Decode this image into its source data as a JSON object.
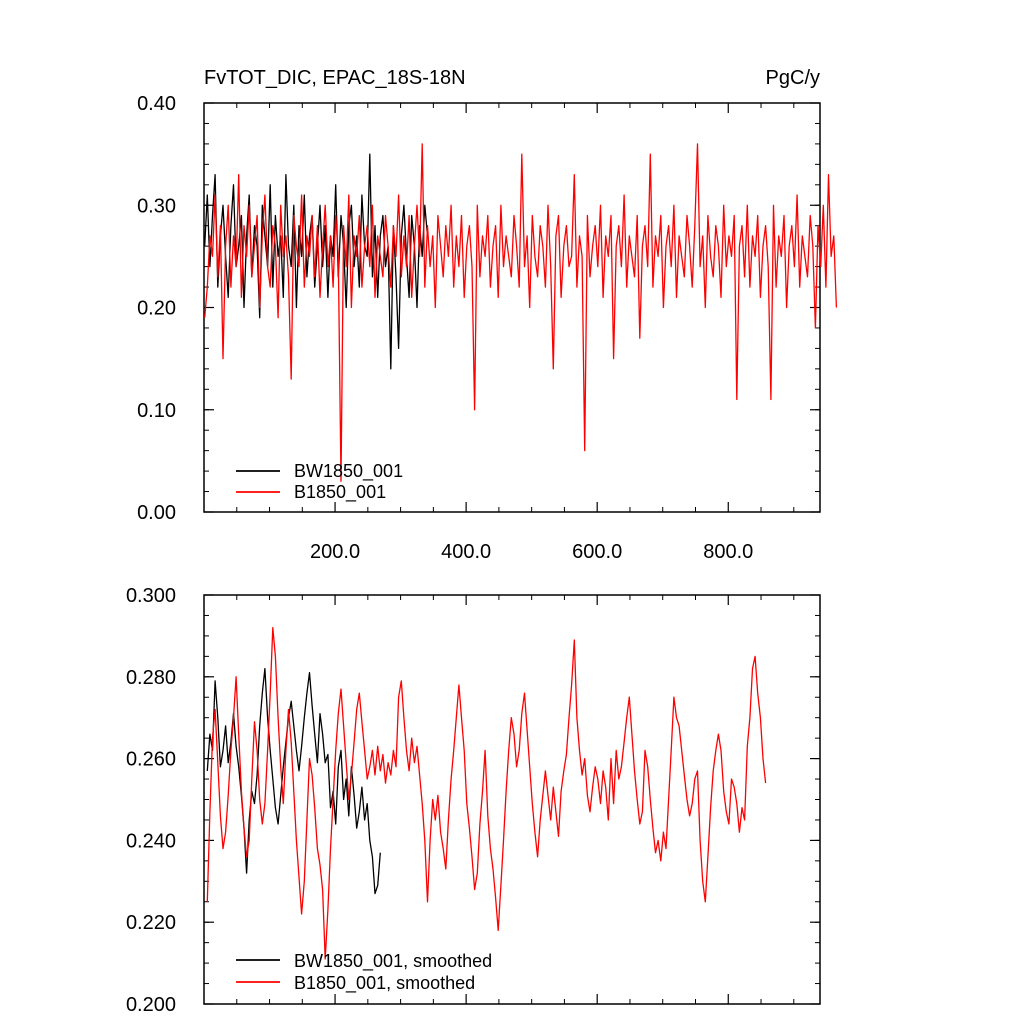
{
  "chart_data": [
    {
      "type": "line",
      "title_left": "FvTOT_DIC, EPAC_18S-18N",
      "title_right": "PgC/y",
      "xlim": [
        0,
        940
      ],
      "ylim": [
        0.0,
        0.4
      ],
      "x_ticks": [
        200,
        400,
        600,
        800
      ],
      "x_tick_labels": [
        "200.0",
        "400.0",
        "600.0",
        "800.0"
      ],
      "y_ticks": [
        0.0,
        0.1,
        0.2,
        0.3,
        0.4
      ],
      "y_tick_labels": [
        "0.00",
        "0.10",
        "0.20",
        "0.30",
        "0.40"
      ],
      "legend_position": "bottom-left",
      "series": [
        {
          "name": "BW1850_001",
          "color": "#000000",
          "x_start": 1,
          "x_step": 4,
          "values": [
            0.26,
            0.31,
            0.24,
            0.29,
            0.33,
            0.22,
            0.27,
            0.3,
            0.25,
            0.21,
            0.28,
            0.32,
            0.24,
            0.26,
            0.29,
            0.2,
            0.27,
            0.31,
            0.23,
            0.28,
            0.26,
            0.19,
            0.3,
            0.27,
            0.24,
            0.32,
            0.22,
            0.29,
            0.25,
            0.27,
            0.21,
            0.33,
            0.26,
            0.24,
            0.3,
            0.2,
            0.28,
            0.25,
            0.31,
            0.23,
            0.27,
            0.29,
            0.22,
            0.26,
            0.3,
            0.24,
            0.28,
            0.21,
            0.27,
            0.25,
            0.32,
            0.23,
            0.29,
            0.26,
            0.2,
            0.28,
            0.3,
            0.24,
            0.27,
            0.22,
            0.31,
            0.26,
            0.25,
            0.35,
            0.23,
            0.28,
            0.21,
            0.27,
            0.29,
            0.24,
            0.26,
            0.14,
            0.28,
            0.23,
            0.16,
            0.27,
            0.3,
            0.25,
            0.21,
            0.29,
            0.26,
            0.2,
            0.28,
            0.25,
            0.3,
            0.27
          ]
        },
        {
          "name": "B1850_001",
          "color": "#ff0000",
          "x_start": 1,
          "x_step": 4,
          "values": [
            0.19,
            0.22,
            0.27,
            0.25,
            0.31,
            0.23,
            0.28,
            0.15,
            0.26,
            0.3,
            0.22,
            0.27,
            0.24,
            0.33,
            0.21,
            0.28,
            0.25,
            0.3,
            0.23,
            0.26,
            0.29,
            0.2,
            0.27,
            0.31,
            0.24,
            0.22,
            0.28,
            0.26,
            0.19,
            0.3,
            0.25,
            0.27,
            0.23,
            0.13,
            0.29,
            0.26,
            0.24,
            0.31,
            0.22,
            0.27,
            0.25,
            0.29,
            0.23,
            0.28,
            0.21,
            0.26,
            0.3,
            0.24,
            0.27,
            0.22,
            0.29,
            0.25,
            0.03,
            0.28,
            0.24,
            0.31,
            0.2,
            0.27,
            0.25,
            0.29,
            0.22,
            0.26,
            0.28,
            0.24,
            0.3,
            0.21,
            0.27,
            0.25,
            0.23,
            0.29,
            0.26,
            0.22,
            0.28,
            0.25,
            0.31,
            0.23,
            0.27,
            0.24,
            0.29,
            0.21,
            0.26,
            0.3,
            0.25,
            0.36,
            0.22,
            0.28,
            0.24,
            0.27,
            0.2,
            0.29,
            0.26,
            0.23,
            0.28,
            0.25,
            0.3,
            0.22,
            0.27,
            0.24,
            0.29,
            0.21,
            0.26,
            0.28,
            0.24,
            0.1,
            0.3,
            0.23,
            0.27,
            0.25,
            0.29,
            0.22,
            0.26,
            0.28,
            0.21,
            0.3,
            0.24,
            0.27,
            0.25,
            0.23,
            0.29,
            0.26,
            0.22,
            0.35,
            0.24,
            0.27,
            0.2,
            0.29,
            0.25,
            0.23,
            0.28,
            0.26,
            0.22,
            0.3,
            0.24,
            0.14,
            0.27,
            0.29,
            0.21,
            0.26,
            0.28,
            0.24,
            0.25,
            0.33,
            0.22,
            0.27,
            0.25,
            0.06,
            0.29,
            0.23,
            0.26,
            0.28,
            0.24,
            0.3,
            0.21,
            0.27,
            0.25,
            0.29,
            0.15,
            0.26,
            0.28,
            0.24,
            0.31,
            0.22,
            0.27,
            0.25,
            0.23,
            0.29,
            0.17,
            0.26,
            0.28,
            0.24,
            0.35,
            0.22,
            0.27,
            0.25,
            0.29,
            0.2,
            0.26,
            0.28,
            0.24,
            0.3,
            0.21,
            0.27,
            0.25,
            0.23,
            0.29,
            0.26,
            0.22,
            0.28,
            0.36,
            0.24,
            0.27,
            0.2,
            0.29,
            0.25,
            0.23,
            0.28,
            0.26,
            0.21,
            0.3,
            0.24,
            0.27,
            0.25,
            0.29,
            0.11,
            0.26,
            0.28,
            0.23,
            0.3,
            0.22,
            0.27,
            0.25,
            0.29,
            0.21,
            0.26,
            0.28,
            0.24,
            0.11,
            0.3,
            0.22,
            0.27,
            0.25,
            0.29,
            0.2,
            0.26,
            0.28,
            0.24,
            0.31,
            0.22,
            0.27,
            0.25,
            0.23,
            0.29,
            0.26,
            0.18,
            0.28,
            0.24,
            0.3,
            0.22,
            0.33,
            0.25,
            0.27,
            0.2
          ]
        }
      ]
    },
    {
      "type": "line",
      "xlim": [
        0,
        940
      ],
      "ylim": [
        0.2,
        0.3
      ],
      "x_ticks": [
        200,
        400,
        600,
        800
      ],
      "y_ticks": [
        0.2,
        0.22,
        0.24,
        0.26,
        0.28,
        0.3
      ],
      "y_tick_labels": [
        "0.200",
        "0.220",
        "0.240",
        "0.260",
        "0.280",
        "0.300"
      ],
      "legend_position": "bottom-left",
      "series": [
        {
          "name": "BW1850_001, smoothed",
          "color": "#000000",
          "x_start": 5,
          "x_step": 4,
          "values": [
            0.257,
            0.266,
            0.262,
            0.279,
            0.27,
            0.258,
            0.262,
            0.268,
            0.259,
            0.264,
            0.271,
            0.263,
            0.258,
            0.251,
            0.243,
            0.232,
            0.245,
            0.252,
            0.249,
            0.256,
            0.268,
            0.276,
            0.282,
            0.27,
            0.262,
            0.255,
            0.248,
            0.244,
            0.251,
            0.258,
            0.264,
            0.27,
            0.274,
            0.268,
            0.262,
            0.257,
            0.263,
            0.27,
            0.276,
            0.281,
            0.273,
            0.266,
            0.259,
            0.271,
            0.266,
            0.259,
            0.261,
            0.248,
            0.252,
            0.244,
            0.258,
            0.262,
            0.25,
            0.255,
            0.246,
            0.258,
            0.251,
            0.243,
            0.247,
            0.253,
            0.245,
            0.249,
            0.24,
            0.236,
            0.227,
            0.229,
            0.237
          ]
        },
        {
          "name": "B1850_001, smoothed",
          "color": "#ff0000",
          "x_start": 5,
          "x_step": 4,
          "values": [
            0.225,
            0.247,
            0.265,
            0.272,
            0.259,
            0.246,
            0.238,
            0.242,
            0.251,
            0.262,
            0.27,
            0.28,
            0.266,
            0.252,
            0.243,
            0.236,
            0.24,
            0.255,
            0.269,
            0.262,
            0.25,
            0.244,
            0.249,
            0.262,
            0.276,
            0.292,
            0.285,
            0.27,
            0.258,
            0.249,
            0.262,
            0.272,
            0.264,
            0.252,
            0.24,
            0.231,
            0.222,
            0.23,
            0.245,
            0.26,
            0.256,
            0.248,
            0.238,
            0.234,
            0.228,
            0.211,
            0.223,
            0.238,
            0.25,
            0.262,
            0.271,
            0.277,
            0.268,
            0.259,
            0.25,
            0.256,
            0.264,
            0.272,
            0.276,
            0.269,
            0.262,
            0.255,
            0.258,
            0.262,
            0.256,
            0.263,
            0.257,
            0.261,
            0.254,
            0.259,
            0.256,
            0.262,
            0.258,
            0.275,
            0.279,
            0.27,
            0.262,
            0.257,
            0.265,
            0.259,
            0.263,
            0.256,
            0.249,
            0.24,
            0.225,
            0.24,
            0.25,
            0.245,
            0.251,
            0.242,
            0.238,
            0.233,
            0.245,
            0.255,
            0.262,
            0.27,
            0.278,
            0.27,
            0.262,
            0.249,
            0.243,
            0.236,
            0.228,
            0.232,
            0.244,
            0.252,
            0.262,
            0.246,
            0.238,
            0.233,
            0.226,
            0.218,
            0.229,
            0.24,
            0.252,
            0.262,
            0.27,
            0.266,
            0.258,
            0.262,
            0.271,
            0.276,
            0.267,
            0.258,
            0.249,
            0.242,
            0.236,
            0.245,
            0.251,
            0.257,
            0.251,
            0.245,
            0.253,
            0.247,
            0.241,
            0.252,
            0.257,
            0.261,
            0.27,
            0.278,
            0.289,
            0.27,
            0.262,
            0.256,
            0.26,
            0.251,
            0.247,
            0.253,
            0.258,
            0.255,
            0.249,
            0.257,
            0.253,
            0.245,
            0.26,
            0.249,
            0.262,
            0.255,
            0.258,
            0.264,
            0.27,
            0.275,
            0.266,
            0.257,
            0.25,
            0.244,
            0.247,
            0.262,
            0.258,
            0.25,
            0.243,
            0.237,
            0.24,
            0.235,
            0.242,
            0.238,
            0.25,
            0.262,
            0.275,
            0.27,
            0.268,
            0.262,
            0.256,
            0.25,
            0.246,
            0.249,
            0.255,
            0.257,
            0.24,
            0.23,
            0.225,
            0.236,
            0.248,
            0.257,
            0.262,
            0.266,
            0.262,
            0.252,
            0.247,
            0.244,
            0.255,
            0.253,
            0.249,
            0.242,
            0.248,
            0.245,
            0.263,
            0.27,
            0.282,
            0.285,
            0.276,
            0.27,
            0.26,
            0.254
          ]
        }
      ]
    }
  ]
}
